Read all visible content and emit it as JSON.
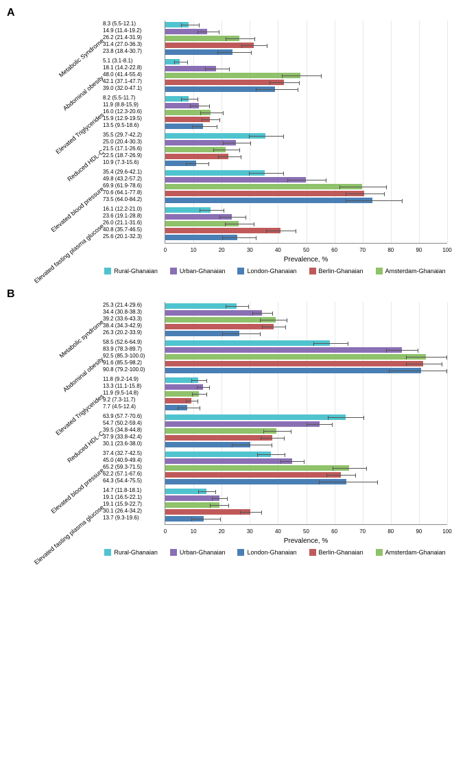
{
  "global": {
    "xaxis_title": "Prevalence,  %",
    "xlim": [
      0,
      100
    ],
    "xtick_step": 10,
    "label_fontsize": 9,
    "data_fontsize": 8,
    "tick_fontsize": 8,
    "background_color": "#ffffff",
    "grid_color": "#e8e8e8",
    "axis_color": "#888888",
    "error_bar_color": "#555555",
    "series": [
      {
        "name": "Rural-Ghanaian",
        "color": "#4fc4cf"
      },
      {
        "name": "Urban-Ghanaian",
        "color": "#8a6fb5"
      },
      {
        "name": "Berlin-Ghanaian",
        "color": "#c05a5a"
      },
      {
        "name": "London-Ghanaian",
        "color": "#4a7fb5"
      },
      {
        "name": "Amsterdam-Ghanaian",
        "color": "#8fc26a"
      }
    ],
    "legend_order": [
      0,
      1,
      3,
      2,
      4
    ],
    "display_order": [
      0,
      1,
      4,
      2,
      3
    ]
  },
  "panels": [
    {
      "id": "A",
      "categories": [
        {
          "label": "Metabolic Syndrome",
          "rows": [
            {
              "text": "8.3 (5.5-12.1)",
              "value": 8.3,
              "lo": 5.5,
              "hi": 12.1
            },
            {
              "text": "14.9 (11.4-19.2)",
              "value": 14.9,
              "lo": 11.4,
              "hi": 19.2
            },
            {
              "text": "31.4 (27.0-36.3)",
              "value": 31.4,
              "lo": 27.0,
              "hi": 36.3
            },
            {
              "text": "23.8 (18.4-30.7)",
              "value": 23.8,
              "lo": 18.4,
              "hi": 30.7
            },
            {
              "text": "26.2 (21.4-31.9)",
              "value": 26.2,
              "lo": 21.4,
              "hi": 31.9
            }
          ]
        },
        {
          "label": "Abdominal obesity",
          "rows": [
            {
              "text": "5.1 (3.1-8.1)",
              "value": 5.1,
              "lo": 3.1,
              "hi": 8.1
            },
            {
              "text": "18.1 (14.2-22.8)",
              "value": 18.1,
              "lo": 14.2,
              "hi": 22.8
            },
            {
              "text": "42.1 (37.1-47.7)",
              "value": 42.1,
              "lo": 37.1,
              "hi": 47.7
            },
            {
              "text": "39.0 (32.0-47.1)",
              "value": 39.0,
              "lo": 32.0,
              "hi": 47.1
            },
            {
              "text": "48.0 (41.4-55.4)",
              "value": 48.0,
              "lo": 41.4,
              "hi": 55.4
            }
          ]
        },
        {
          "label": "Elevated Triglycerides",
          "rows": [
            {
              "text": "8.2 (5.5-11.7)",
              "value": 8.2,
              "lo": 5.5,
              "hi": 11.7
            },
            {
              "text": "11.9 (8.8-15.9)",
              "value": 11.9,
              "lo": 8.8,
              "hi": 15.9
            },
            {
              "text": "15.9 (12.9-19.5)",
              "value": 15.9,
              "lo": 12.9,
              "hi": 19.5
            },
            {
              "text": "13.5 (9.5-18.6)",
              "value": 13.5,
              "lo": 9.5,
              "hi": 18.6
            },
            {
              "text": "16.0 (12.3-20.6)",
              "value": 16.0,
              "lo": 12.3,
              "hi": 20.6
            }
          ]
        },
        {
          "label": "Reduced HDL-C",
          "rows": [
            {
              "text": "35.5 (29.7-42.2)",
              "value": 35.5,
              "lo": 29.7,
              "hi": 42.2
            },
            {
              "text": "25.0 (20.4-30.3)",
              "value": 25.0,
              "lo": 20.4,
              "hi": 30.3
            },
            {
              "text": "22.5 (18.7-26.9)",
              "value": 22.5,
              "lo": 18.7,
              "hi": 26.9
            },
            {
              "text": "10.9 (7.3-15.6)",
              "value": 10.9,
              "lo": 7.3,
              "hi": 15.6
            },
            {
              "text": "21.5 (17.1-26.6)",
              "value": 21.5,
              "lo": 17.1,
              "hi": 26.6
            }
          ]
        },
        {
          "label": "Elevated blood pressure",
          "rows": [
            {
              "text": "35.4 (29.6-42.1)",
              "value": 35.4,
              "lo": 29.6,
              "hi": 42.1
            },
            {
              "text": "49.8 (43.2-57.2)",
              "value": 49.8,
              "lo": 43.2,
              "hi": 57.2
            },
            {
              "text": "70.6 (64.1-77.8)",
              "value": 70.6,
              "lo": 64.1,
              "hi": 77.8
            },
            {
              "text": "73.5 (64.0-84.2)",
              "value": 73.5,
              "lo": 64.0,
              "hi": 84.2
            },
            {
              "text": "69.9 (61.9-78.6)",
              "value": 69.9,
              "lo": 61.9,
              "hi": 78.6
            }
          ]
        },
        {
          "label": "Elevated fasting plasma glucose",
          "rows": [
            {
              "text": "16.1 (12.2-21.0)",
              "value": 16.1,
              "lo": 12.2,
              "hi": 21.0
            },
            {
              "text": "23.6 (19.1-28.8)",
              "value": 23.6,
              "lo": 19.1,
              "hi": 28.8
            },
            {
              "text": "40.8 (35.7-46.5)",
              "value": 40.8,
              "lo": 35.7,
              "hi": 46.5
            },
            {
              "text": "25.6 (20.1-32.3)",
              "value": 25.6,
              "lo": 20.1,
              "hi": 32.3
            },
            {
              "text": "26.0 (21.1-31.6)",
              "value": 26.0,
              "lo": 21.1,
              "hi": 31.6
            }
          ]
        }
      ]
    },
    {
      "id": "B",
      "categories": [
        {
          "label": "Metabolic syndrome",
          "rows": [
            {
              "text": "25.3 (21.4-29.6)",
              "value": 25.3,
              "lo": 21.4,
              "hi": 29.6
            },
            {
              "text": "34.4 (30.8-38.3)",
              "value": 34.4,
              "lo": 30.8,
              "hi": 38.3
            },
            {
              "text": "38.4 (34.3-42.9)",
              "value": 38.4,
              "lo": 34.3,
              "hi": 42.9
            },
            {
              "text": "26.3 (20.2-33.9)",
              "value": 26.3,
              "lo": 20.2,
              "hi": 33.9
            },
            {
              "text": "39.2 (33.6-43.3)",
              "value": 39.2,
              "lo": 33.6,
              "hi": 43.3
            }
          ]
        },
        {
          "label": "Abdominal obesity",
          "rows": [
            {
              "text": "58.5 (52.6-64.9)",
              "value": 58.5,
              "lo": 52.6,
              "hi": 64.9
            },
            {
              "text": "83.9 (78.3-89.7)",
              "value": 83.9,
              "lo": 78.3,
              "hi": 89.7
            },
            {
              "text": "91.6 (85.5-98.2)",
              "value": 91.6,
              "lo": 85.5,
              "hi": 98.2
            },
            {
              "text": "90.8 (79.2-100.0)",
              "value": 90.8,
              "lo": 79.2,
              "hi": 100.0
            },
            {
              "text": "92.5 (85.3-100.0)",
              "value": 92.5,
              "lo": 85.3,
              "hi": 100.0
            }
          ]
        },
        {
          "label": "Elevated Triglycerides",
          "rows": [
            {
              "text": "11.8 (9.2-14.9)",
              "value": 11.8,
              "lo": 9.2,
              "hi": 14.9
            },
            {
              "text": "13.3 (11.1-15.8)",
              "value": 13.3,
              "lo": 11.1,
              "hi": 15.8
            },
            {
              "text": "9.2 (7.3-11.7)",
              "value": 9.2,
              "lo": 7.3,
              "hi": 11.7
            },
            {
              "text": "7.7 (4.5-12.4)",
              "value": 7.7,
              "lo": 4.5,
              "hi": 12.4
            },
            {
              "text": "11.9 (9.5-14.8)",
              "value": 11.9,
              "lo": 9.5,
              "hi": 14.8
            }
          ]
        },
        {
          "label": "Reduced HDL-C",
          "rows": [
            {
              "text": "63.9 (57.7-70.6)",
              "value": 63.9,
              "lo": 57.7,
              "hi": 70.6
            },
            {
              "text": "54.7 (50.2-59.4)",
              "value": 54.7,
              "lo": 50.2,
              "hi": 59.4
            },
            {
              "text": "37.9 (33.8-42.4)",
              "value": 37.9,
              "lo": 33.8,
              "hi": 42.4
            },
            {
              "text": "30.1 (23.6-38.0)",
              "value": 30.1,
              "lo": 23.6,
              "hi": 38.0
            },
            {
              "text": "39.5 (34.8-44.8)",
              "value": 39.5,
              "lo": 34.8,
              "hi": 44.8
            }
          ]
        },
        {
          "label": "Elevated blood pressure",
          "rows": [
            {
              "text": "37.4 (32.7-42.5)",
              "value": 37.4,
              "lo": 32.7,
              "hi": 42.5
            },
            {
              "text": "45.0 (40.9-49.4)",
              "value": 45.0,
              "lo": 40.9,
              "hi": 49.4
            },
            {
              "text": "62.2 (57.1-67.6)",
              "value": 62.2,
              "lo": 57.1,
              "hi": 67.6
            },
            {
              "text": "64.3 (54.4-75.5)",
              "value": 64.3,
              "lo": 54.4,
              "hi": 75.5
            },
            {
              "text": "65.2 (59.3-71.5)",
              "value": 65.2,
              "lo": 59.3,
              "hi": 71.5
            }
          ]
        },
        {
          "label": "Elevated fasting plasma glucose",
          "rows": [
            {
              "text": "14.7 (11.8-18.1)",
              "value": 14.7,
              "lo": 11.8,
              "hi": 18.1
            },
            {
              "text": "19.1 (16.5-22.1)",
              "value": 19.1,
              "lo": 16.5,
              "hi": 22.1
            },
            {
              "text": "30.1 (26.4-34.2)",
              "value": 30.1,
              "lo": 26.4,
              "hi": 34.2
            },
            {
              "text": "13.7 (9.3-19.6)",
              "value": 13.7,
              "lo": 9.3,
              "hi": 19.6
            },
            {
              "text": "19.1 (15.9-22.7)",
              "value": 19.1,
              "lo": 15.9,
              "hi": 22.7
            }
          ]
        }
      ]
    }
  ]
}
